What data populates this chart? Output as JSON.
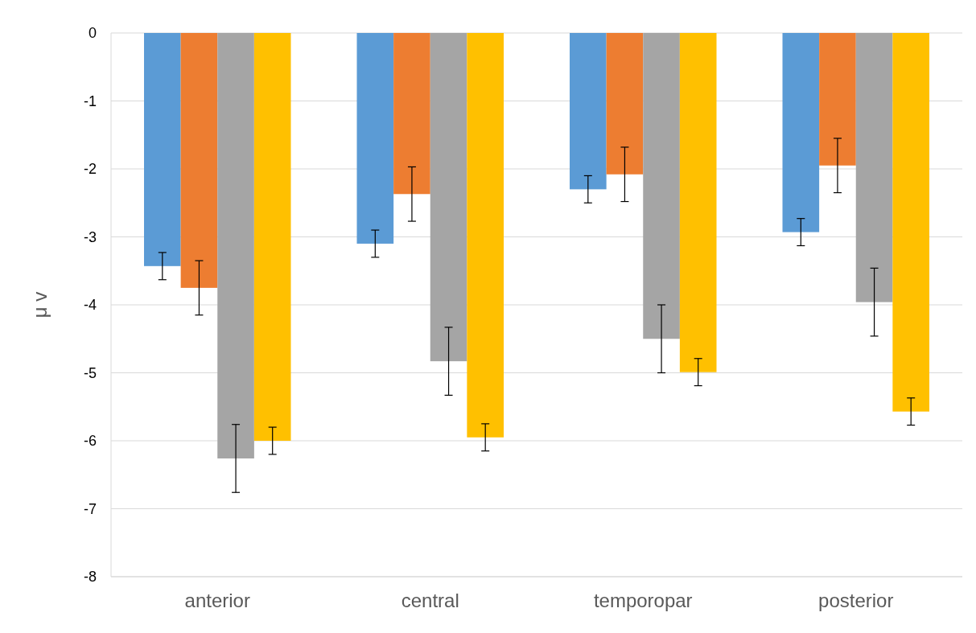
{
  "chart_data": {
    "type": "bar",
    "ylabel": "μ v",
    "categories": [
      "anterior",
      "central",
      "temporopar",
      "posterior"
    ],
    "series": [
      {
        "color": "#5b9bd5",
        "values": [
          -3.43,
          -3.1,
          -2.3,
          -2.93
        ],
        "errors": [
          0.2,
          0.2,
          0.2,
          0.2
        ]
      },
      {
        "color": "#ed7d31",
        "values": [
          -3.75,
          -2.37,
          -2.08,
          -1.95
        ],
        "errors": [
          0.4,
          0.4,
          0.4,
          0.4
        ]
      },
      {
        "color": "#a5a5a5",
        "values": [
          -6.26,
          -4.83,
          -4.5,
          -3.96
        ],
        "errors": [
          0.5,
          0.5,
          0.5,
          0.5
        ]
      },
      {
        "color": "#ffc000",
        "values": [
          -6.0,
          -5.95,
          -4.99,
          -5.57
        ],
        "errors": [
          0.2,
          0.2,
          0.2,
          0.2
        ]
      }
    ],
    "ylim": [
      -8,
      0
    ],
    "yticks": [
      -8,
      -7,
      -6,
      -5,
      -4,
      -3,
      -2,
      -1,
      0
    ],
    "grid": "y"
  }
}
